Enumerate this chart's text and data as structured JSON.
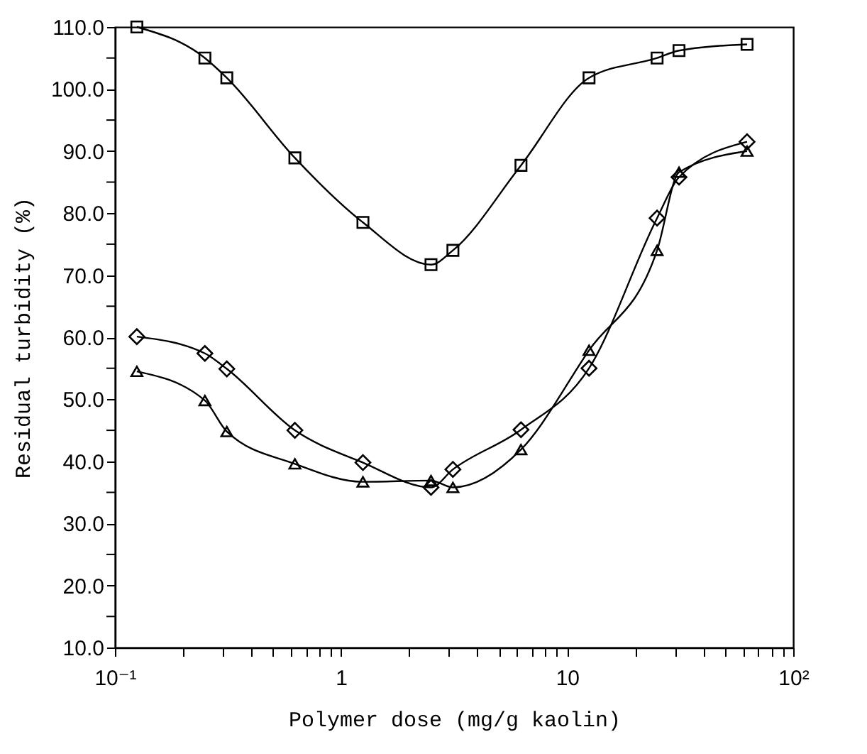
{
  "chart_data": {
    "type": "line",
    "xlabel": "Polymer dose (mg/g kaolin)",
    "ylabel": "Residual turbidity (%)",
    "log": "x",
    "grid": false,
    "line_style": "solid",
    "x": [
      0.125,
      0.25,
      0.3125,
      0.625,
      1.25,
      2.5,
      3.125,
      6.25,
      12.5,
      25,
      31.25,
      62.5
    ],
    "xlim": [
      0.1,
      100
    ],
    "xticks": [
      {
        "value": 0.1,
        "label": "10⁻¹"
      },
      {
        "value": 0.2,
        "label": null
      },
      {
        "value": 0.3,
        "label": null
      },
      {
        "value": 0.4,
        "label": null
      },
      {
        "value": 0.5,
        "label": null
      },
      {
        "value": 0.6,
        "label": null
      },
      {
        "value": 0.7,
        "label": null
      },
      {
        "value": 0.8,
        "label": null
      },
      {
        "value": 0.9,
        "label": null
      },
      1,
      {
        "value": 2,
        "label": null
      },
      {
        "value": 3,
        "label": null
      },
      {
        "value": 4,
        "label": null
      },
      {
        "value": 5,
        "label": null
      },
      {
        "value": 6,
        "label": null
      },
      {
        "value": 7,
        "label": null
      },
      {
        "value": 8,
        "label": null
      },
      {
        "value": 9,
        "label": null
      },
      10,
      {
        "value": 20,
        "label": null
      },
      {
        "value": 30,
        "label": null
      },
      {
        "value": 40,
        "label": null
      },
      {
        "value": 50,
        "label": null
      },
      {
        "value": 60,
        "label": null
      },
      {
        "value": 70,
        "label": null
      },
      {
        "value": 80,
        "label": null
      },
      {
        "value": 90,
        "label": null
      },
      {
        "value": 100,
        "label": "10²"
      }
    ],
    "ylim": [
      10,
      110
    ],
    "yticks": [
      {
        "value": 10,
        "label": "10.0"
      },
      {
        "value": 15,
        "label": null
      },
      {
        "value": 20,
        "label": "20.0"
      },
      {
        "value": 25,
        "label": null
      },
      {
        "value": 30,
        "label": "30.0"
      },
      {
        "value": 35,
        "label": null
      },
      {
        "value": 40,
        "label": "40.0"
      },
      {
        "value": 45,
        "label": null
      },
      {
        "value": 50,
        "label": "50.0"
      },
      {
        "value": 55,
        "label": null
      },
      {
        "value": 60,
        "label": "60.0"
      },
      {
        "value": 65,
        "label": null
      },
      {
        "value": 70,
        "label": "70.0"
      },
      {
        "value": 75,
        "label": null
      },
      {
        "value": 80,
        "label": "80.0"
      },
      {
        "value": 85,
        "label": null
      },
      {
        "value": 90,
        "label": "90.0"
      },
      {
        "value": 95,
        "label": null
      },
      {
        "value": 100,
        "label": "100.0"
      },
      {
        "value": 105,
        "label": null
      },
      {
        "value": 110,
        "label": "110.0"
      }
    ],
    "series": [
      {
        "color": "#000000",
        "marker": "square",
        "values": [
          110.0,
          105.0,
          101.8,
          88.9,
          78.5,
          71.7,
          74.0,
          87.7,
          101.8,
          105.0,
          106.2,
          107.2
        ]
      },
      {
        "color": "#000000",
        "marker": "diamond",
        "values": [
          60.1,
          57.4,
          54.9,
          45.0,
          39.8,
          35.8,
          38.7,
          45.1,
          55.0,
          79.2,
          85.8,
          91.5
        ]
      },
      {
        "color": "#000000",
        "marker": "triangle",
        "values": [
          54.5,
          49.8,
          44.8,
          39.6,
          36.7,
          36.9,
          35.8,
          41.9,
          57.9,
          74.0,
          86.6,
          90.0
        ]
      }
    ]
  }
}
